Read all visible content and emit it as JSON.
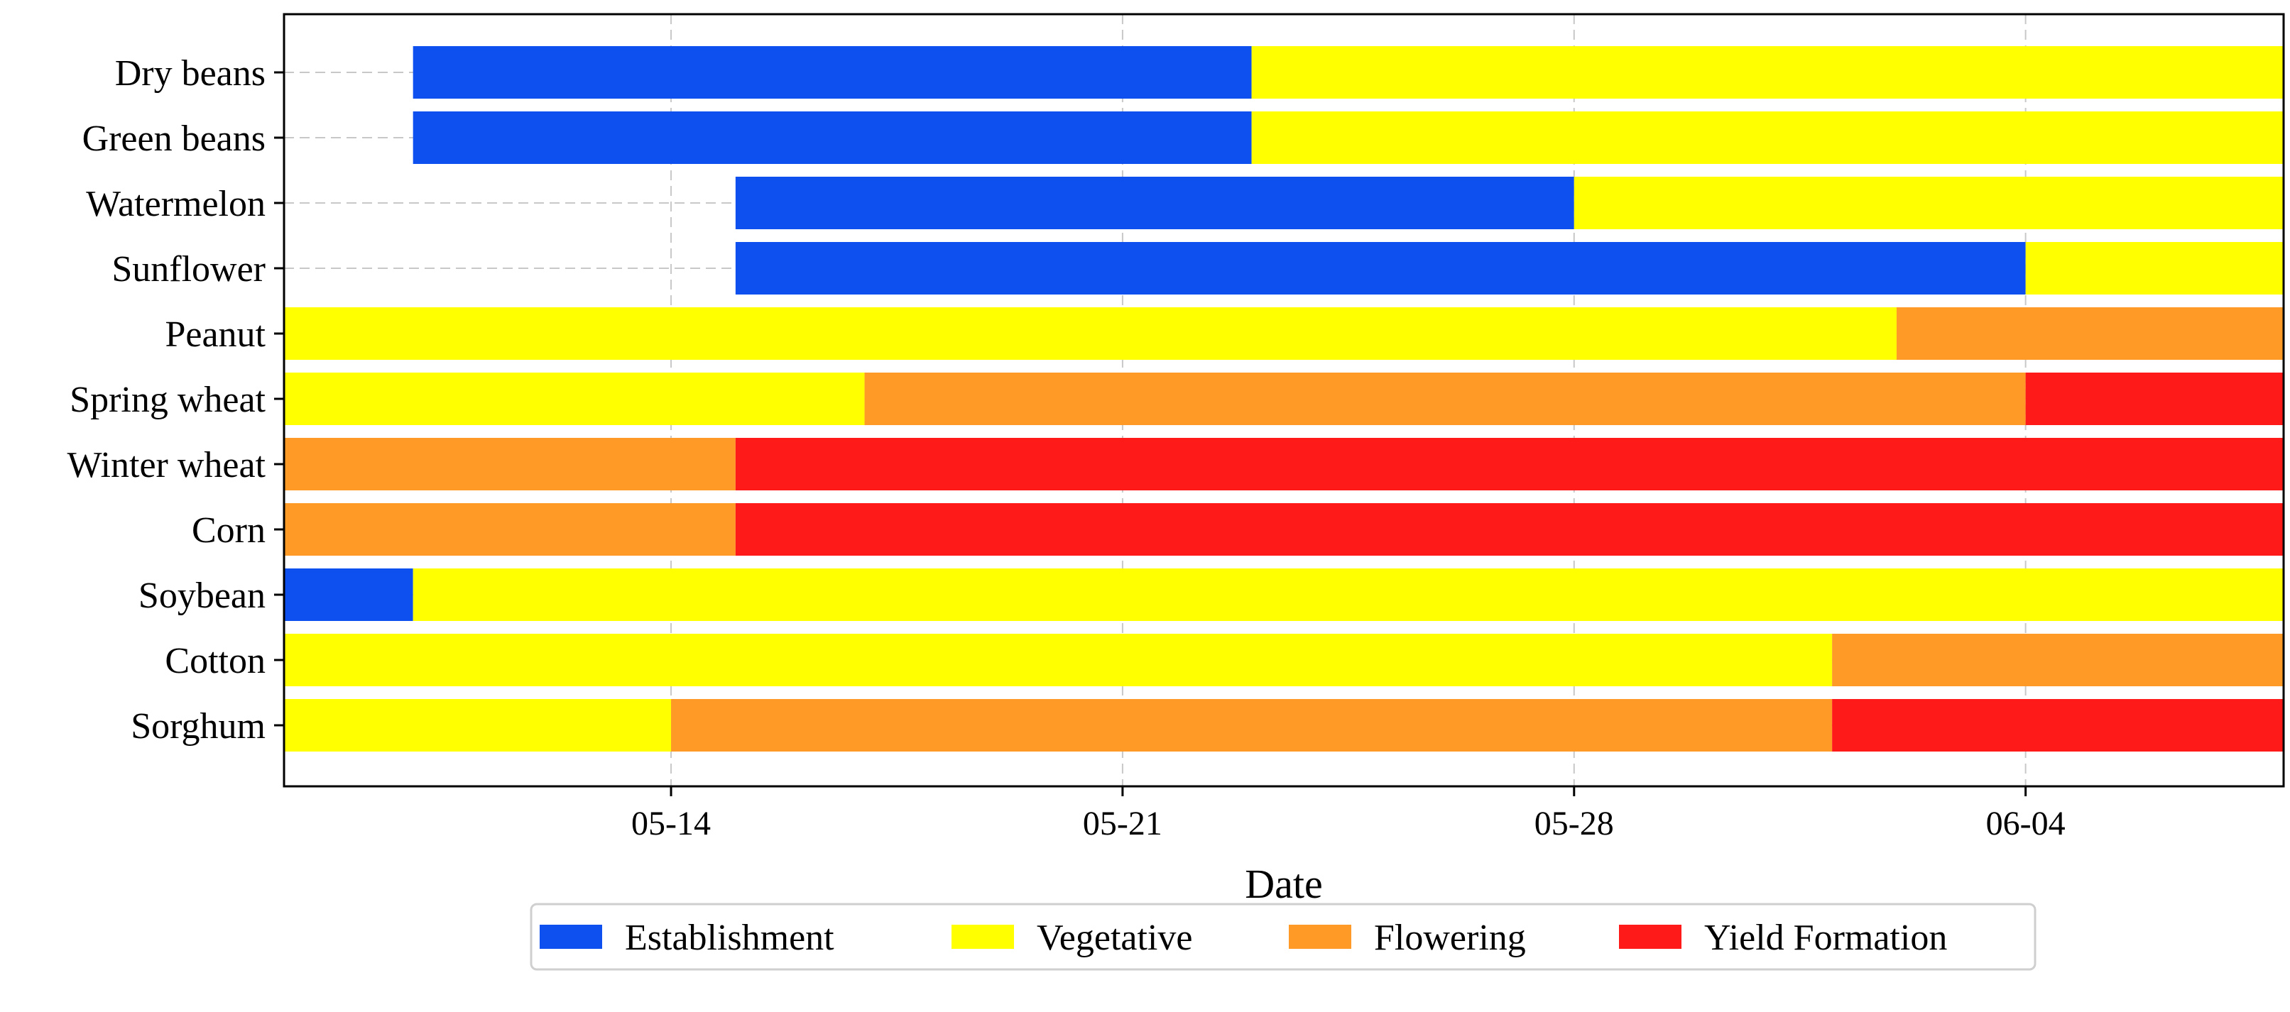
{
  "chart_data": {
    "type": "gantt",
    "title": "",
    "xlabel": "Date",
    "ylabel": "",
    "x_domain": [
      "05-08",
      "06-08"
    ],
    "x_ticks": [
      "05-14",
      "05-21",
      "05-28",
      "06-04"
    ],
    "grid": true,
    "legend_position": "bottom-center",
    "stage_colors": {
      "Establishment": "#0d4fef",
      "Vegetative": "#ffff00",
      "Flowering": "#ff9a26",
      "Yield Formation": "#ff1a1a"
    },
    "legend": [
      "Establishment",
      "Vegetative",
      "Flowering",
      "Yield Formation"
    ],
    "crops": [
      {
        "name": "Dry beans",
        "segments": [
          {
            "stage": "Establishment",
            "start": "05-10",
            "end": "05-23"
          },
          {
            "stage": "Vegetative",
            "start": "05-23",
            "end": "06-08"
          }
        ]
      },
      {
        "name": "Green beans",
        "segments": [
          {
            "stage": "Establishment",
            "start": "05-10",
            "end": "05-23"
          },
          {
            "stage": "Vegetative",
            "start": "05-23",
            "end": "06-08"
          }
        ]
      },
      {
        "name": "Watermelon",
        "segments": [
          {
            "stage": "Establishment",
            "start": "05-15",
            "end": "05-28"
          },
          {
            "stage": "Vegetative",
            "start": "05-28",
            "end": "06-08"
          }
        ]
      },
      {
        "name": "Sunflower",
        "segments": [
          {
            "stage": "Establishment",
            "start": "05-15",
            "end": "06-04"
          },
          {
            "stage": "Vegetative",
            "start": "06-04",
            "end": "06-08"
          }
        ]
      },
      {
        "name": "Peanut",
        "segments": [
          {
            "stage": "Vegetative",
            "start": "05-08",
            "end": "06-02"
          },
          {
            "stage": "Flowering",
            "start": "06-02",
            "end": "06-08"
          }
        ]
      },
      {
        "name": "Spring wheat",
        "segments": [
          {
            "stage": "Vegetative",
            "start": "05-08",
            "end": "05-17"
          },
          {
            "stage": "Flowering",
            "start": "05-17",
            "end": "06-04"
          },
          {
            "stage": "Yield Formation",
            "start": "06-04",
            "end": "06-08"
          }
        ]
      },
      {
        "name": "Winter wheat",
        "segments": [
          {
            "stage": "Flowering",
            "start": "05-08",
            "end": "05-15"
          },
          {
            "stage": "Yield Formation",
            "start": "05-15",
            "end": "06-08"
          }
        ]
      },
      {
        "name": "Corn",
        "segments": [
          {
            "stage": "Flowering",
            "start": "05-08",
            "end": "05-15"
          },
          {
            "stage": "Yield Formation",
            "start": "05-15",
            "end": "06-08"
          }
        ]
      },
      {
        "name": "Soybean",
        "segments": [
          {
            "stage": "Establishment",
            "start": "05-08",
            "end": "05-10"
          },
          {
            "stage": "Vegetative",
            "start": "05-10",
            "end": "06-08"
          }
        ]
      },
      {
        "name": "Cotton",
        "segments": [
          {
            "stage": "Vegetative",
            "start": "05-08",
            "end": "06-01"
          },
          {
            "stage": "Flowering",
            "start": "06-01",
            "end": "06-08"
          }
        ]
      },
      {
        "name": "Sorghum",
        "segments": [
          {
            "stage": "Vegetative",
            "start": "05-08",
            "end": "05-14"
          },
          {
            "stage": "Flowering",
            "start": "05-14",
            "end": "06-01"
          },
          {
            "stage": "Yield Formation",
            "start": "06-01",
            "end": "06-08"
          }
        ]
      }
    ]
  }
}
